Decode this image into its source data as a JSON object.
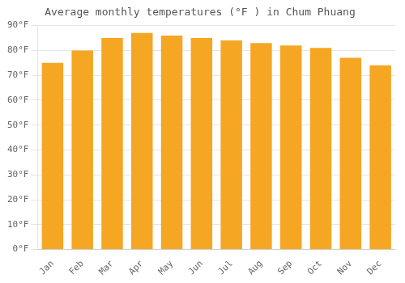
{
  "chart_data": {
    "type": "bar",
    "title": "Average monthly temperatures (°F ) in Chum Phuang",
    "categories": [
      "Jan",
      "Feb",
      "Mar",
      "Apr",
      "May",
      "Jun",
      "Jul",
      "Aug",
      "Sep",
      "Oct",
      "Nov",
      "Dec"
    ],
    "values": [
      75,
      80,
      85,
      87,
      86,
      85,
      84,
      83,
      82,
      81,
      77,
      74
    ],
    "color": "#F5A623",
    "ylim": [
      0,
      90
    ],
    "yticks": [
      {
        "value": 0,
        "label": "0°F"
      },
      {
        "value": 10,
        "label": "10°F"
      },
      {
        "value": 20,
        "label": "20°F"
      },
      {
        "value": 30,
        "label": "30°F"
      },
      {
        "value": 40,
        "label": "40°F"
      },
      {
        "value": 50,
        "label": "50°F"
      },
      {
        "value": 60,
        "label": "60°F"
      },
      {
        "value": 70,
        "label": "70°F"
      },
      {
        "value": 80,
        "label": "80°F"
      },
      {
        "value": 90,
        "label": "90°F"
      }
    ],
    "grid": true
  }
}
